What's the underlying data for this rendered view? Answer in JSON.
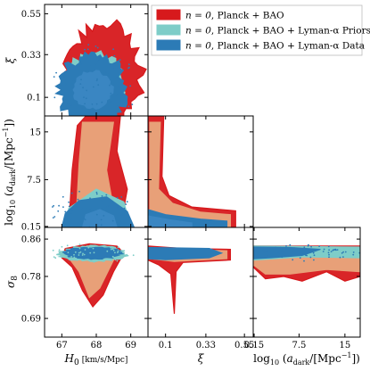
{
  "chart_data": {
    "type": "scatter",
    "layout": "corner-plot",
    "legend_position": "top-right",
    "legend": [
      {
        "label": "n = 0, Planck + BAO",
        "math": "n = 0",
        "rest": ", Planck + BAO",
        "color": "#d7191c",
        "fill": "#e8a078"
      },
      {
        "label": "n = 0, Planck + BAO + Lyman-α Priors",
        "math": "n = 0",
        "rest": ", Planck + BAO + Lyman-α Priors",
        "color": "#7ecdc8",
        "fill": "#a8ddd8"
      },
      {
        "label": "n = 0, Planck + BAO + Lyman-α Data",
        "math": "n = 0",
        "rest": ", Planck + BAO + Lyman-α Data",
        "color": "#2c7bb6",
        "fill": "#4a90c8"
      }
    ],
    "parameters": [
      {
        "name": "H0",
        "xlabel": "H_0",
        "xunit": "[km/s/Mpc]",
        "range": [
          66.5,
          69.5
        ],
        "ticks": [
          67,
          68,
          69
        ],
        "tick_labels": [
          "67",
          "68",
          "69"
        ]
      },
      {
        "name": "xi",
        "xlabel": "ξ",
        "ylabel": "ξ",
        "range": [
          0.0,
          0.6
        ],
        "ticks": [
          0.1,
          0.33,
          0.55
        ],
        "tick_labels": [
          "0.1",
          "0.33",
          "0.55"
        ]
      },
      {
        "name": "log10_adark",
        "xlabel": "log10 (a_dark/[Mpc^-1])",
        "ylabel": "log10 (a_dark/[Mpc^-1])",
        "range": [
          0,
          17.5
        ],
        "ticks": [
          0.15,
          7.5,
          15
        ],
        "tick_labels": [
          "0.15",
          "7.5",
          "15"
        ]
      },
      {
        "name": "sigma8",
        "ylabel": "σ8",
        "range": [
          0.65,
          0.885
        ],
        "ticks": [
          0.69,
          0.78,
          0.86
        ],
        "tick_labels": [
          "0.69",
          "0.78",
          "0.86"
        ]
      }
    ]
  }
}
